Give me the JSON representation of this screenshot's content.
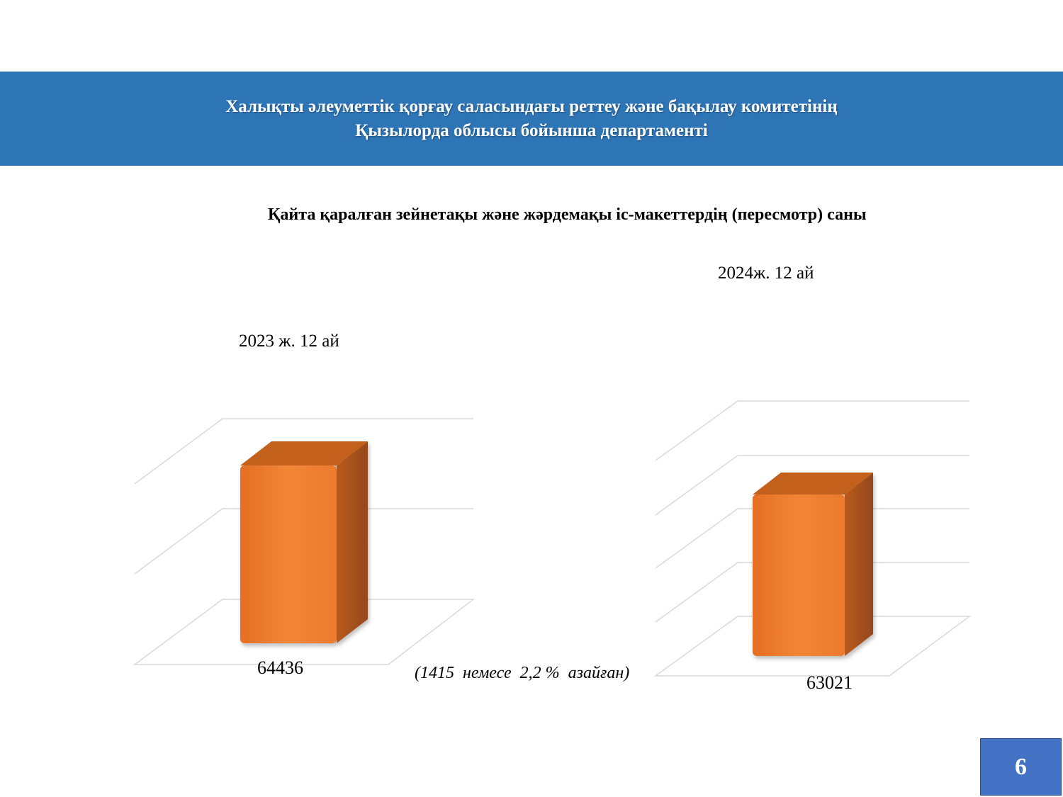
{
  "header": {
    "line1": "Халықты әлеуметтік қорғау саласындағы реттеу және бақылау комитетінің",
    "line2": "Қызылорда облысы бойынша департаменті",
    "background_color": "#2e75b6"
  },
  "chart_data": {
    "type": "bar",
    "title": "Қайта қаралған зейнетақы және жәрдемақы іс-макеттердің (пересмотр) саны",
    "categories": [
      "2023 ж. 12 ай",
      "2024ж. 12 ай"
    ],
    "values": [
      64436,
      63021
    ],
    "value_labels": [
      "64436",
      "63021"
    ],
    "annotation": "(1415  немесе  2,2 %  азайған)",
    "grid": true,
    "bar_color": "#ed7d31"
  },
  "page_number": "6"
}
